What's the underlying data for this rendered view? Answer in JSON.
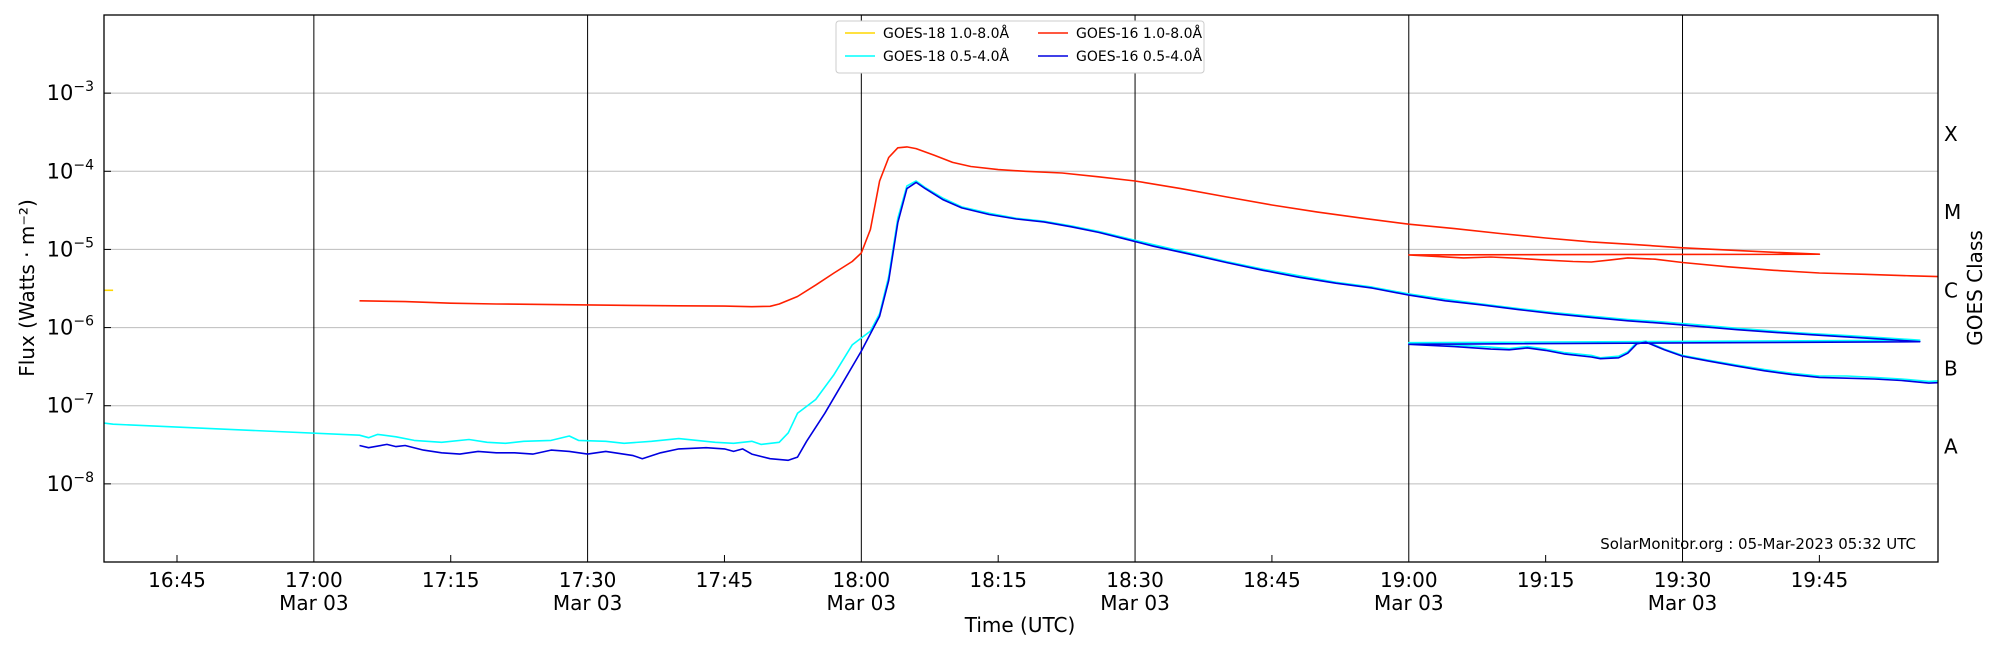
{
  "chart_data": {
    "type": "line",
    "xlabel": "Time (UTC)",
    "ylabel": "Flux (Watts · m⁻²)",
    "y2label": "GOES Class",
    "yscale": "log",
    "ylim": [
      1e-09,
      0.01
    ],
    "xlim": [
      "16:37",
      "19:58"
    ],
    "grid": "horizontal at decades, vertical at half-hours",
    "legend_position": "top-center",
    "watermark": "SolarMonitor.org : 05-Mar-2023 05:32 UTC",
    "date_label": "Mar 03",
    "x_ticks_minor": [
      "16:45",
      "17:15",
      "17:45",
      "18:15",
      "18:45",
      "19:15",
      "19:45"
    ],
    "x_ticks_major": [
      "17:00",
      "17:30",
      "18:00",
      "18:30",
      "19:00",
      "19:30"
    ],
    "y_ticks": [
      {
        "value": 1e-08,
        "base": "10",
        "exp": "−8"
      },
      {
        "value": 1e-07,
        "base": "10",
        "exp": "−7"
      },
      {
        "value": 1e-06,
        "base": "10",
        "exp": "−6"
      },
      {
        "value": 1e-05,
        "base": "10",
        "exp": "−5"
      },
      {
        "value": 0.0001,
        "base": "10",
        "exp": "−4"
      },
      {
        "value": 0.001,
        "base": "10",
        "exp": "−3"
      }
    ],
    "goes_classes": [
      {
        "label": "A",
        "value": 3e-08
      },
      {
        "label": "B",
        "value": 3e-07
      },
      {
        "label": "C",
        "value": 3e-06
      },
      {
        "label": "M",
        "value": 3e-05
      },
      {
        "label": "X",
        "value": 0.0003
      }
    ],
    "series": [
      {
        "name": "GOES-18 1.0-8.0Å",
        "color": "#ffd700",
        "points": [
          [
            "16:37",
            3e-06
          ],
          [
            "16:38",
            3e-06
          ]
        ]
      },
      {
        "name": "GOES-18 0.5-4.0Å",
        "color": "#00ffff",
        "points": [
          [
            "16:37",
            6e-08
          ],
          [
            "16:38",
            5.8e-08
          ],
          [
            "17:05",
            4.2e-08
          ],
          [
            "17:06",
            3.9e-08
          ],
          [
            "17:07",
            4.3e-08
          ],
          [
            "17:09",
            4e-08
          ],
          [
            "17:11",
            3.6e-08
          ],
          [
            "17:14",
            3.4e-08
          ],
          [
            "17:17",
            3.7e-08
          ],
          [
            "17:19",
            3.4e-08
          ],
          [
            "17:21",
            3.3e-08
          ],
          [
            "17:23",
            3.5e-08
          ],
          [
            "17:26",
            3.6e-08
          ],
          [
            "17:28",
            4.1e-08
          ],
          [
            "17:29",
            3.6e-08
          ],
          [
            "17:32",
            3.5e-08
          ],
          [
            "17:34",
            3.3e-08
          ],
          [
            "17:37",
            3.5e-08
          ],
          [
            "17:40",
            3.8e-08
          ],
          [
            "17:42",
            3.6e-08
          ],
          [
            "17:44",
            3.4e-08
          ],
          [
            "17:46",
            3.3e-08
          ],
          [
            "17:48",
            3.5e-08
          ],
          [
            "17:49",
            3.2e-08
          ],
          [
            "17:51",
            3.4e-08
          ],
          [
            "17:52",
            4.5e-08
          ],
          [
            "17:53",
            8e-08
          ],
          [
            "17:55",
            1.2e-07
          ],
          [
            "17:57",
            2.5e-07
          ],
          [
            "17:59",
            6e-07
          ],
          [
            "18:01",
            9e-07
          ],
          [
            "18:02",
            1.5e-06
          ],
          [
            "18:03",
            4.5e-06
          ],
          [
            "18:04",
            2.5e-05
          ],
          [
            "18:05",
            6.5e-05
          ],
          [
            "18:06",
            7.5e-05
          ],
          [
            "18:07",
            6.2e-05
          ],
          [
            "18:09",
            4.5e-05
          ],
          [
            "18:11",
            3.5e-05
          ],
          [
            "18:14",
            2.9e-05
          ],
          [
            "18:17",
            2.5e-05
          ],
          [
            "18:20",
            2.3e-05
          ],
          [
            "18:23",
            2e-05
          ],
          [
            "18:26",
            1.7e-05
          ],
          [
            "18:29",
            1.4e-05
          ],
          [
            "18:32",
            1.15e-05
          ],
          [
            "18:36",
            9e-06
          ],
          [
            "18:40",
            7e-06
          ],
          [
            "18:44",
            5.6e-06
          ],
          [
            "18:48",
            4.6e-06
          ],
          [
            "18:52",
            3.8e-06
          ],
          [
            "18:56",
            3.3e-06
          ],
          [
            "19:00",
            2.7e-06
          ],
          [
            "19:04",
            2.3e-06
          ],
          [
            "19:08",
            2e-06
          ],
          [
            "19:12",
            1.75e-06
          ],
          [
            "19:16",
            1.55e-06
          ],
          [
            "19:20",
            1.4e-06
          ],
          [
            "19:24",
            1.27e-06
          ],
          [
            "19:28",
            1.18e-06
          ],
          [
            "19:32",
            1.08e-06
          ],
          [
            "19:36",
            9.8e-07
          ],
          [
            "19:40",
            9e-07
          ],
          [
            "19:44",
            8.4e-07
          ],
          [
            "19:48",
            7.9e-07
          ],
          [
            "19:52",
            7.4e-07
          ],
          [
            "19:56",
            6.9e-07
          ],
          [
            "19:00",
            6.4e-07
          ],
          [
            "19:05",
            6e-07
          ],
          [
            "19:09",
            5.6e-07
          ],
          [
            "19:11",
            5.4e-07
          ],
          [
            "19:13",
            5.7e-07
          ],
          [
            "19:15",
            5.3e-07
          ],
          [
            "19:17",
            4.8e-07
          ],
          [
            "19:20",
            4.4e-07
          ],
          [
            "19:21",
            4.1e-07
          ],
          [
            "19:23",
            4.3e-07
          ],
          [
            "19:24",
            4.9e-07
          ],
          [
            "19:25",
            6.5e-07
          ],
          [
            "19:26",
            6.7e-07
          ],
          [
            "19:28",
            5.3e-07
          ],
          [
            "19:30",
            4.4e-07
          ],
          [
            "19:33",
            3.8e-07
          ],
          [
            "19:36",
            3.3e-07
          ],
          [
            "19:39",
            2.9e-07
          ],
          [
            "19:42",
            2.6e-07
          ],
          [
            "19:45",
            2.4e-07
          ],
          [
            "19:48",
            2.4e-07
          ],
          [
            "19:51",
            2.3e-07
          ],
          [
            "19:54",
            2.2e-07
          ],
          [
            "19:57",
            2.05e-07
          ],
          [
            "19:59",
            2.1e-07
          ],
          [
            "20:01",
            1.8e-07
          ]
        ]
      },
      {
        "name": "GOES-16 1.0-8.0Å",
        "color": "#ff2000",
        "points": [
          [
            "17:05",
            2.2e-06
          ],
          [
            "17:10",
            2.15e-06
          ],
          [
            "17:15",
            2.05e-06
          ],
          [
            "17:20",
            2e-06
          ],
          [
            "17:25",
            1.98e-06
          ],
          [
            "17:30",
            1.95e-06
          ],
          [
            "17:35",
            1.92e-06
          ],
          [
            "17:40",
            1.9e-06
          ],
          [
            "17:45",
            1.88e-06
          ],
          [
            "17:48",
            1.85e-06
          ],
          [
            "17:50",
            1.87e-06
          ],
          [
            "17:51",
            2e-06
          ],
          [
            "17:53",
            2.5e-06
          ],
          [
            "17:55",
            3.5e-06
          ],
          [
            "17:57",
            5e-06
          ],
          [
            "17:59",
            7e-06
          ],
          [
            "18:00",
            9e-06
          ],
          [
            "18:01",
            1.8e-05
          ],
          [
            "18:02",
            7.5e-05
          ],
          [
            "18:03",
            0.00015
          ],
          [
            "18:04",
            0.0002
          ],
          [
            "18:05",
            0.000205
          ],
          [
            "18:06",
            0.000195
          ],
          [
            "18:08",
            0.00016
          ],
          [
            "18:10",
            0.00013
          ],
          [
            "18:12",
            0.000115
          ],
          [
            "18:15",
            0.000105
          ],
          [
            "18:18",
            0.0001
          ],
          [
            "18:22",
            9.5e-05
          ],
          [
            "18:26",
            8.5e-05
          ],
          [
            "18:30",
            7.5e-05
          ],
          [
            "18:35",
            6e-05
          ],
          [
            "18:40",
            4.7e-05
          ],
          [
            "18:45",
            3.7e-05
          ],
          [
            "18:50",
            3e-05
          ],
          [
            "18:55",
            2.5e-05
          ],
          [
            "19:00",
            2.1e-05
          ],
          [
            "19:05",
            1.85e-05
          ],
          [
            "19:10",
            1.6e-05
          ],
          [
            "19:15",
            1.4e-05
          ],
          [
            "19:20",
            1.25e-05
          ],
          [
            "19:25",
            1.15e-05
          ],
          [
            "19:30",
            1.05e-05
          ],
          [
            "19:35",
            9.8e-06
          ],
          [
            "19:40",
            9.2e-06
          ],
          [
            "19:45",
            8.7e-06
          ],
          [
            "19:00",
            8.5e-06
          ],
          [
            "19:06",
            7.8e-06
          ],
          [
            "19:09",
            8e-06
          ],
          [
            "19:12",
            7.7e-06
          ],
          [
            "19:15",
            7.3e-06
          ],
          [
            "19:18",
            7e-06
          ],
          [
            "19:20",
            6.9e-06
          ],
          [
            "19:22",
            7.3e-06
          ],
          [
            "19:24",
            7.8e-06
          ],
          [
            "19:27",
            7.5e-06
          ],
          [
            "19:30",
            6.8e-06
          ],
          [
            "19:35",
            6e-06
          ],
          [
            "19:40",
            5.4e-06
          ],
          [
            "19:45",
            5e-06
          ],
          [
            "19:50",
            4.8e-06
          ],
          [
            "19:55",
            4.6e-06
          ],
          [
            "20:01",
            4.4e-06
          ]
        ]
      },
      {
        "name": "GOES-16 0.5-4.0Å",
        "color": "#0000e0",
        "points": [
          [
            "17:05",
            3.1e-08
          ],
          [
            "17:06",
            2.9e-08
          ],
          [
            "17:08",
            3.2e-08
          ],
          [
            "17:09",
            3e-08
          ],
          [
            "17:10",
            3.1e-08
          ],
          [
            "17:12",
            2.7e-08
          ],
          [
            "17:14",
            2.5e-08
          ],
          [
            "17:16",
            2.4e-08
          ],
          [
            "17:18",
            2.6e-08
          ],
          [
            "17:20",
            2.5e-08
          ],
          [
            "17:22",
            2.5e-08
          ],
          [
            "17:24",
            2.4e-08
          ],
          [
            "17:26",
            2.7e-08
          ],
          [
            "17:28",
            2.6e-08
          ],
          [
            "17:30",
            2.4e-08
          ],
          [
            "17:32",
            2.6e-08
          ],
          [
            "17:33",
            2.5e-08
          ],
          [
            "17:35",
            2.3e-08
          ],
          [
            "17:36",
            2.1e-08
          ],
          [
            "17:38",
            2.5e-08
          ],
          [
            "17:40",
            2.8e-08
          ],
          [
            "17:43",
            2.9e-08
          ],
          [
            "17:45",
            2.8e-08
          ],
          [
            "17:46",
            2.6e-08
          ],
          [
            "17:47",
            2.8e-08
          ],
          [
            "17:48",
            2.4e-08
          ],
          [
            "17:50",
            2.1e-08
          ],
          [
            "17:52",
            2e-08
          ],
          [
            "17:53",
            2.2e-08
          ],
          [
            "17:54",
            3.5e-08
          ],
          [
            "17:56",
            8e-08
          ],
          [
            "17:58",
            2e-07
          ],
          [
            "18:00",
            5e-07
          ],
          [
            "18:02",
            1.4e-06
          ],
          [
            "18:03",
            4e-06
          ],
          [
            "18:04",
            2.2e-05
          ],
          [
            "18:05",
            6e-05
          ],
          [
            "18:06",
            7.2e-05
          ],
          [
            "18:07",
            6e-05
          ],
          [
            "18:09",
            4.3e-05
          ],
          [
            "18:11",
            3.4e-05
          ],
          [
            "18:14",
            2.8e-05
          ],
          [
            "18:17",
            2.45e-05
          ],
          [
            "18:20",
            2.25e-05
          ],
          [
            "18:23",
            1.95e-05
          ],
          [
            "18:26",
            1.65e-05
          ],
          [
            "18:29",
            1.35e-05
          ],
          [
            "18:32",
            1.1e-05
          ],
          [
            "18:36",
            8.7e-06
          ],
          [
            "18:40",
            6.8e-06
          ],
          [
            "18:44",
            5.4e-06
          ],
          [
            "18:48",
            4.4e-06
          ],
          [
            "18:52",
            3.7e-06
          ],
          [
            "18:56",
            3.2e-06
          ],
          [
            "19:00",
            2.6e-06
          ],
          [
            "19:04",
            2.2e-06
          ],
          [
            "19:08",
            1.95e-06
          ],
          [
            "19:12",
            1.7e-06
          ],
          [
            "19:16",
            1.5e-06
          ],
          [
            "19:20",
            1.35e-06
          ],
          [
            "19:24",
            1.22e-06
          ],
          [
            "19:28",
            1.13e-06
          ],
          [
            "19:32",
            1.03e-06
          ],
          [
            "19:36",
            9.4e-07
          ],
          [
            "19:40",
            8.7e-07
          ],
          [
            "19:44",
            8.1e-07
          ],
          [
            "19:48",
            7.6e-07
          ],
          [
            "19:52",
            7.1e-07
          ],
          [
            "19:56",
            6.6e-07
          ],
          [
            "19:00",
            6.1e-07
          ],
          [
            "19:05",
            5.7e-07
          ],
          [
            "19:09",
            5.3e-07
          ],
          [
            "19:11",
            5.2e-07
          ],
          [
            "19:13",
            5.5e-07
          ],
          [
            "19:15",
            5.1e-07
          ],
          [
            "19:17",
            4.6e-07
          ],
          [
            "19:20",
            4.2e-07
          ],
          [
            "19:21",
            4e-07
          ],
          [
            "19:23",
            4.1e-07
          ],
          [
            "19:24",
            4.7e-07
          ],
          [
            "19:25",
            6.2e-07
          ],
          [
            "19:26",
            6.5e-07
          ],
          [
            "19:28",
            5.2e-07
          ],
          [
            "19:30",
            4.3e-07
          ],
          [
            "19:33",
            3.7e-07
          ],
          [
            "19:36",
            3.2e-07
          ],
          [
            "19:39",
            2.8e-07
          ],
          [
            "19:42",
            2.5e-07
          ],
          [
            "19:45",
            2.3e-07
          ],
          [
            "19:48",
            2.25e-07
          ],
          [
            "19:51",
            2.2e-07
          ],
          [
            "19:54",
            2.1e-07
          ],
          [
            "19:57",
            1.95e-07
          ],
          [
            "19:59",
            2e-07
          ],
          [
            "20:01",
            1.75e-07
          ]
        ]
      }
    ]
  }
}
